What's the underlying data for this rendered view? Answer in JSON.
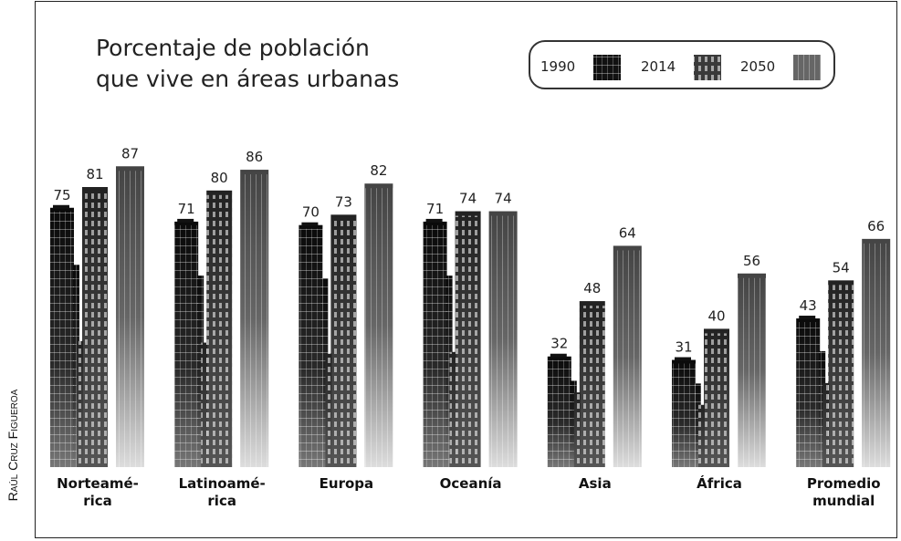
{
  "credit": "Raúl Cruz Figueroa",
  "chart_data": {
    "type": "bar",
    "title_line1": "Porcentaje de población",
    "title_line2": "que vive en áreas urbanas",
    "categories": [
      [
        "Norteamé-",
        "rica"
      ],
      [
        "Latinoamé-",
        "rica"
      ],
      [
        "Europa"
      ],
      [
        "Oceanía"
      ],
      [
        "Asia"
      ],
      [
        "África"
      ],
      [
        "Promedio",
        "mundial"
      ]
    ],
    "series": [
      {
        "name": "1990",
        "values": [
          75,
          71,
          70,
          71,
          32,
          31,
          43
        ]
      },
      {
        "name": "2014",
        "values": [
          81,
          80,
          73,
          74,
          48,
          40,
          54
        ]
      },
      {
        "name": "2050",
        "values": [
          87,
          86,
          82,
          74,
          64,
          56,
          66
        ]
      }
    ],
    "ylim": [
      0,
      100
    ],
    "xlabel": "",
    "ylabel": "",
    "grid": false,
    "legend_position": "top-right",
    "colors": {
      "1990": "#111111",
      "2014": "#3a3a3a",
      "2050": "#666666"
    }
  }
}
